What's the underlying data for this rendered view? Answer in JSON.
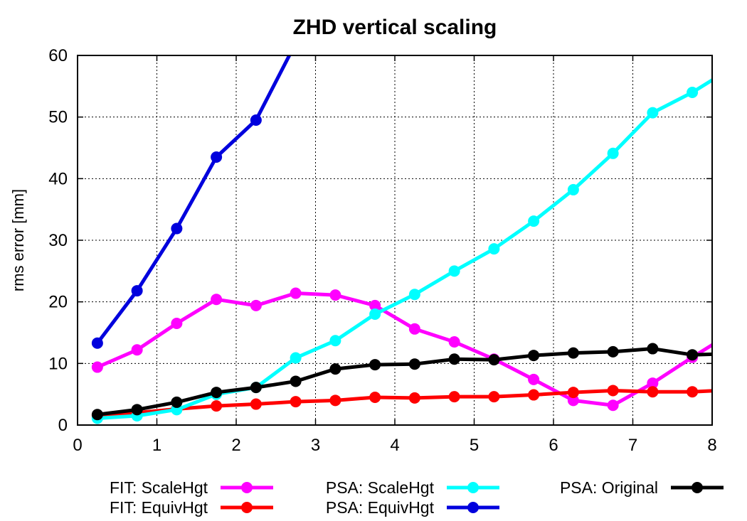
{
  "chart_data": {
    "type": "line",
    "title": "ZHD vertical scaling",
    "xlabel": "",
    "ylabel": "rms error [mm]",
    "xlim": [
      0,
      8
    ],
    "ylim": [
      0,
      60
    ],
    "xticks": [
      0,
      1,
      2,
      3,
      4,
      5,
      6,
      7,
      8
    ],
    "yticks": [
      0,
      10,
      20,
      30,
      40,
      50,
      60
    ],
    "grid": true,
    "legend_position": "bottom",
    "series": [
      {
        "name": "FIT: ScaleHgt",
        "color": "#ff00ff",
        "x": [
          0.25,
          0.75,
          1.25,
          1.75,
          2.25,
          2.75,
          3.25,
          3.75,
          4.25,
          4.75,
          5.25,
          5.75,
          6.25,
          6.75,
          7.25,
          7.75,
          8.25
        ],
        "y": [
          9.4,
          12.2,
          16.5,
          20.4,
          19.4,
          21.4,
          21.1,
          19.4,
          15.6,
          13.5,
          10.7,
          7.4,
          4.0,
          3.2,
          6.8,
          11.0,
          15.0
        ]
      },
      {
        "name": "FIT: EquivHgt",
        "color": "#ff0000",
        "x": [
          0.25,
          0.75,
          1.25,
          1.75,
          2.25,
          2.75,
          3.25,
          3.75,
          4.25,
          4.75,
          5.25,
          5.75,
          6.25,
          6.75,
          7.25,
          7.75,
          8.25
        ],
        "y": [
          1.6,
          2.0,
          2.6,
          3.1,
          3.4,
          3.8,
          4.0,
          4.5,
          4.4,
          4.6,
          4.6,
          4.9,
          5.3,
          5.6,
          5.4,
          5.4,
          5.7
        ]
      },
      {
        "name": "PSA: ScaleHgt",
        "color": "#00ffff",
        "x": [
          0.25,
          0.75,
          1.25,
          1.75,
          2.25,
          2.75,
          3.25,
          3.75,
          4.25,
          4.75,
          5.25,
          5.75,
          6.25,
          6.75,
          7.25,
          7.75,
          8.25
        ],
        "y": [
          1.1,
          1.5,
          2.5,
          5.0,
          6.1,
          10.9,
          13.7,
          18.0,
          21.2,
          25.0,
          28.6,
          33.1,
          38.2,
          44.1,
          50.7,
          54.0,
          58.0
        ]
      },
      {
        "name": "PSA: EquivHgt",
        "color": "#0000dd",
        "x": [
          0.25,
          0.75,
          1.25,
          1.75,
          2.25,
          2.75
        ],
        "y": [
          13.3,
          21.8,
          31.9,
          43.5,
          49.5,
          62.0
        ]
      },
      {
        "name": "PSA: Original",
        "color": "#000000",
        "x": [
          0.25,
          0.75,
          1.25,
          1.75,
          2.25,
          2.75,
          3.25,
          3.75,
          4.25,
          4.75,
          5.25,
          5.75,
          6.25,
          6.75,
          7.25,
          7.75,
          8.25
        ],
        "y": [
          1.7,
          2.5,
          3.7,
          5.3,
          6.1,
          7.1,
          9.1,
          9.8,
          9.9,
          10.7,
          10.6,
          11.3,
          11.7,
          11.9,
          12.4,
          11.4,
          11.6
        ]
      }
    ],
    "legend_layout": [
      [
        0,
        1
      ],
      [
        2,
        3
      ],
      [
        4
      ]
    ]
  }
}
